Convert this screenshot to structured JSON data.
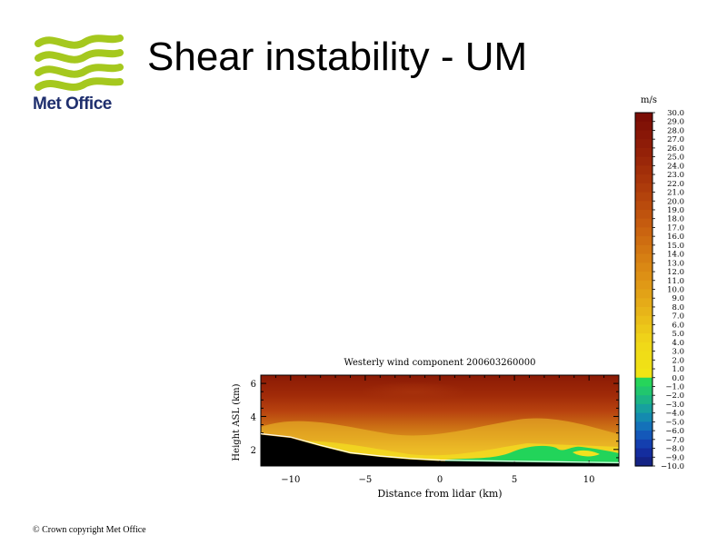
{
  "slide": {
    "title": "Shear instability - UM",
    "logo_text": "Met Office",
    "copyright": "© Crown copyright   Met Office"
  },
  "colors": {
    "logo_green": "#a5c81e",
    "logo_text": "#1f2f6e"
  },
  "chart_data": {
    "type": "heatmap",
    "title": "Westerly wind component 200603260000",
    "xlabel": "Distance from lidar (km)",
    "ylabel": "Height ASL (km)",
    "xlim": [
      -12,
      12
    ],
    "ylim": [
      1,
      6.5
    ],
    "xticks": [
      -10,
      -5,
      0,
      5,
      10
    ],
    "yticks": [
      2,
      4,
      6
    ],
    "colorbar": {
      "unit": "m/s",
      "min": -10,
      "max": 30,
      "levels": [
        30.0,
        29.0,
        28.0,
        27.0,
        26.0,
        25.0,
        24.0,
        23.0,
        22.0,
        21.0,
        20.0,
        19.0,
        18.0,
        17.0,
        16.0,
        15.0,
        14.0,
        13.0,
        12.0,
        11.0,
        10.0,
        9.0,
        8.0,
        7.0,
        6.0,
        5.0,
        4.0,
        3.0,
        2.0,
        1.0,
        0.0,
        -1.0,
        -2.0,
        -3.0,
        -4.0,
        -5.0,
        -6.0,
        -7.0,
        -8.0,
        -9.0,
        -10.0
      ],
      "labels": [
        "30.0",
        "29.0",
        "28.0",
        "27.0",
        "26.0",
        "25.0",
        "24.0",
        "23.0",
        "22.0",
        "21.0",
        "20.0",
        "19.0",
        "18.0",
        "17.0",
        "16.0",
        "15.0",
        "14.0",
        "13.0",
        "12.0",
        "11.0",
        "10.0",
        "9.0",
        "8.0",
        "7.0",
        "6.0",
        "5.0",
        "4.0",
        "3.0",
        "2.0",
        "1.0",
        "0.0",
        "−1.0",
        "−2.0",
        "−3.0",
        "−4.0",
        "−5.0",
        "−6.0",
        "−7.0",
        "−8.0",
        "−9.0",
        "−10.0"
      ]
    },
    "terrain_km": [
      {
        "x": -12,
        "z": 2.9
      },
      {
        "x": -10,
        "z": 2.7
      },
      {
        "x": -8,
        "z": 2.2
      },
      {
        "x": -6,
        "z": 1.75
      },
      {
        "x": -4,
        "z": 1.55
      },
      {
        "x": -2,
        "z": 1.4
      },
      {
        "x": 0,
        "z": 1.3
      },
      {
        "x": 4,
        "z": 1.25
      },
      {
        "x": 8,
        "z": 1.2
      },
      {
        "x": 12,
        "z": 1.15
      }
    ]
  }
}
